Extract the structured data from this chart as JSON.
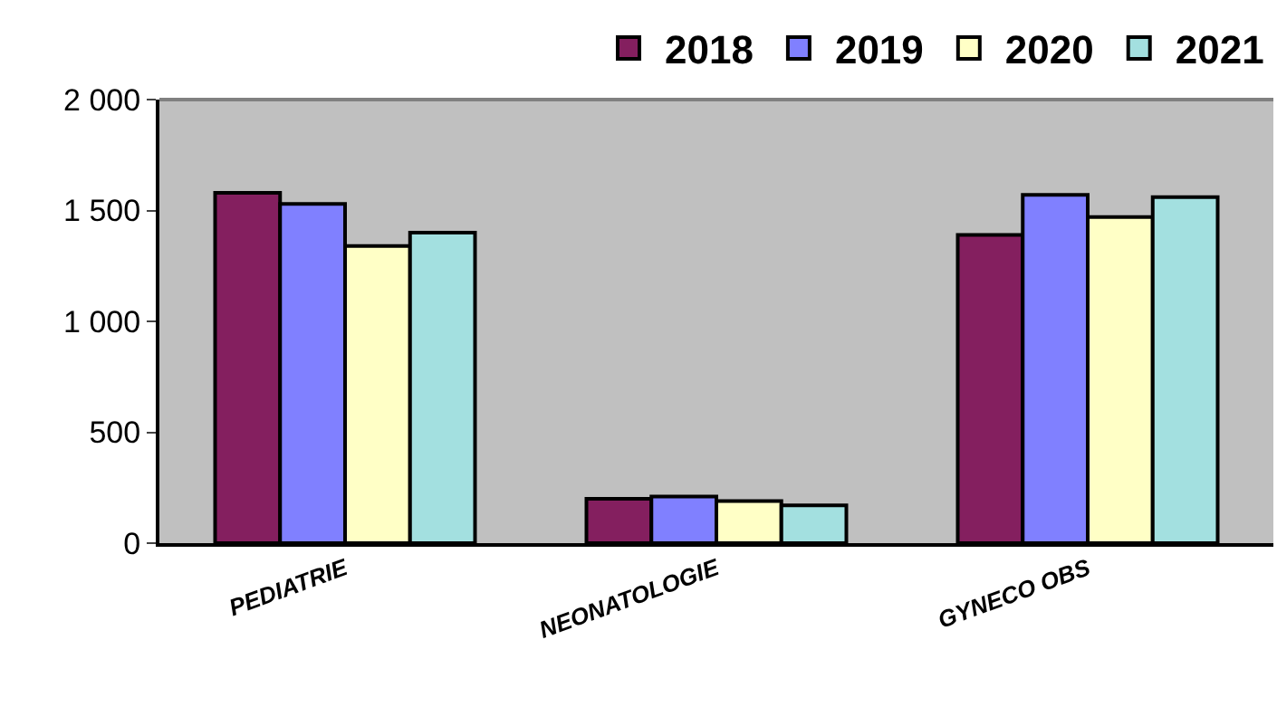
{
  "chart_data": {
    "type": "bar",
    "categories": [
      "PEDIATRIE",
      "NEONATOLOGIE",
      "GYNECO OBS"
    ],
    "series": [
      {
        "name": "2018",
        "color": "#841f5f",
        "values": [
          1580,
          200,
          1390
        ]
      },
      {
        "name": "2019",
        "color": "#8080ff",
        "values": [
          1530,
          210,
          1570
        ]
      },
      {
        "name": "2020",
        "color": "#ffffc6",
        "values": [
          1340,
          190,
          1470
        ]
      },
      {
        "name": "2021",
        "color": "#a3e0e0",
        "values": [
          1400,
          170,
          1560
        ]
      }
    ],
    "ylim": [
      0,
      2000
    ],
    "yticks": [
      0,
      500,
      {
        "value": 1000,
        "label": "1 000"
      },
      {
        "value": 1500,
        "label": "1 500"
      },
      {
        "value": 2000,
        "label": "2 000"
      }
    ],
    "grid": false,
    "legend": "top right"
  }
}
